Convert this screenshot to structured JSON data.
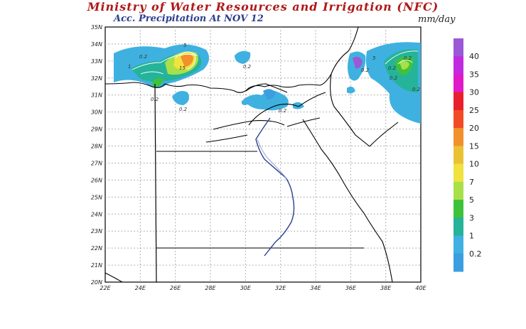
{
  "header": {
    "title": "Ministry of Water Resources and Irrigation (NFC)",
    "subtitle": "Acc. Precipitation At NOV 12",
    "unit": "mm/day"
  },
  "axes": {
    "lat_labels": [
      "35N",
      "34N",
      "33N",
      "32N",
      "31N",
      "30N",
      "29N",
      "28N",
      "27N",
      "26N",
      "25N",
      "24N",
      "23N",
      "22N",
      "21N",
      "20N"
    ],
    "lon_labels": [
      "22E",
      "24E",
      "26E",
      "28E",
      "30E",
      "32E",
      "34E",
      "36E",
      "38E",
      "40E"
    ]
  },
  "map_labels": [
    "0.2",
    "1",
    "5",
    "15",
    "0.2",
    "0.2",
    "0.2",
    "0.2",
    "0.2",
    "0.2",
    "0.2",
    "0.2",
    "0.2",
    "5"
  ],
  "legend": {
    "levels": [
      "40",
      "35",
      "30",
      "25",
      "20",
      "15",
      "10",
      "7",
      "5",
      "3",
      "1",
      "0.2"
    ],
    "colors": [
      "#9b59d6",
      "#c02be0",
      "#e01ac8",
      "#e8202e",
      "#f24a25",
      "#f2902c",
      "#e9c234",
      "#f0e23f",
      "#a8e049",
      "#3fc23b",
      "#25b39a",
      "#3fb1e0",
      "#3b9edf"
    ]
  }
}
